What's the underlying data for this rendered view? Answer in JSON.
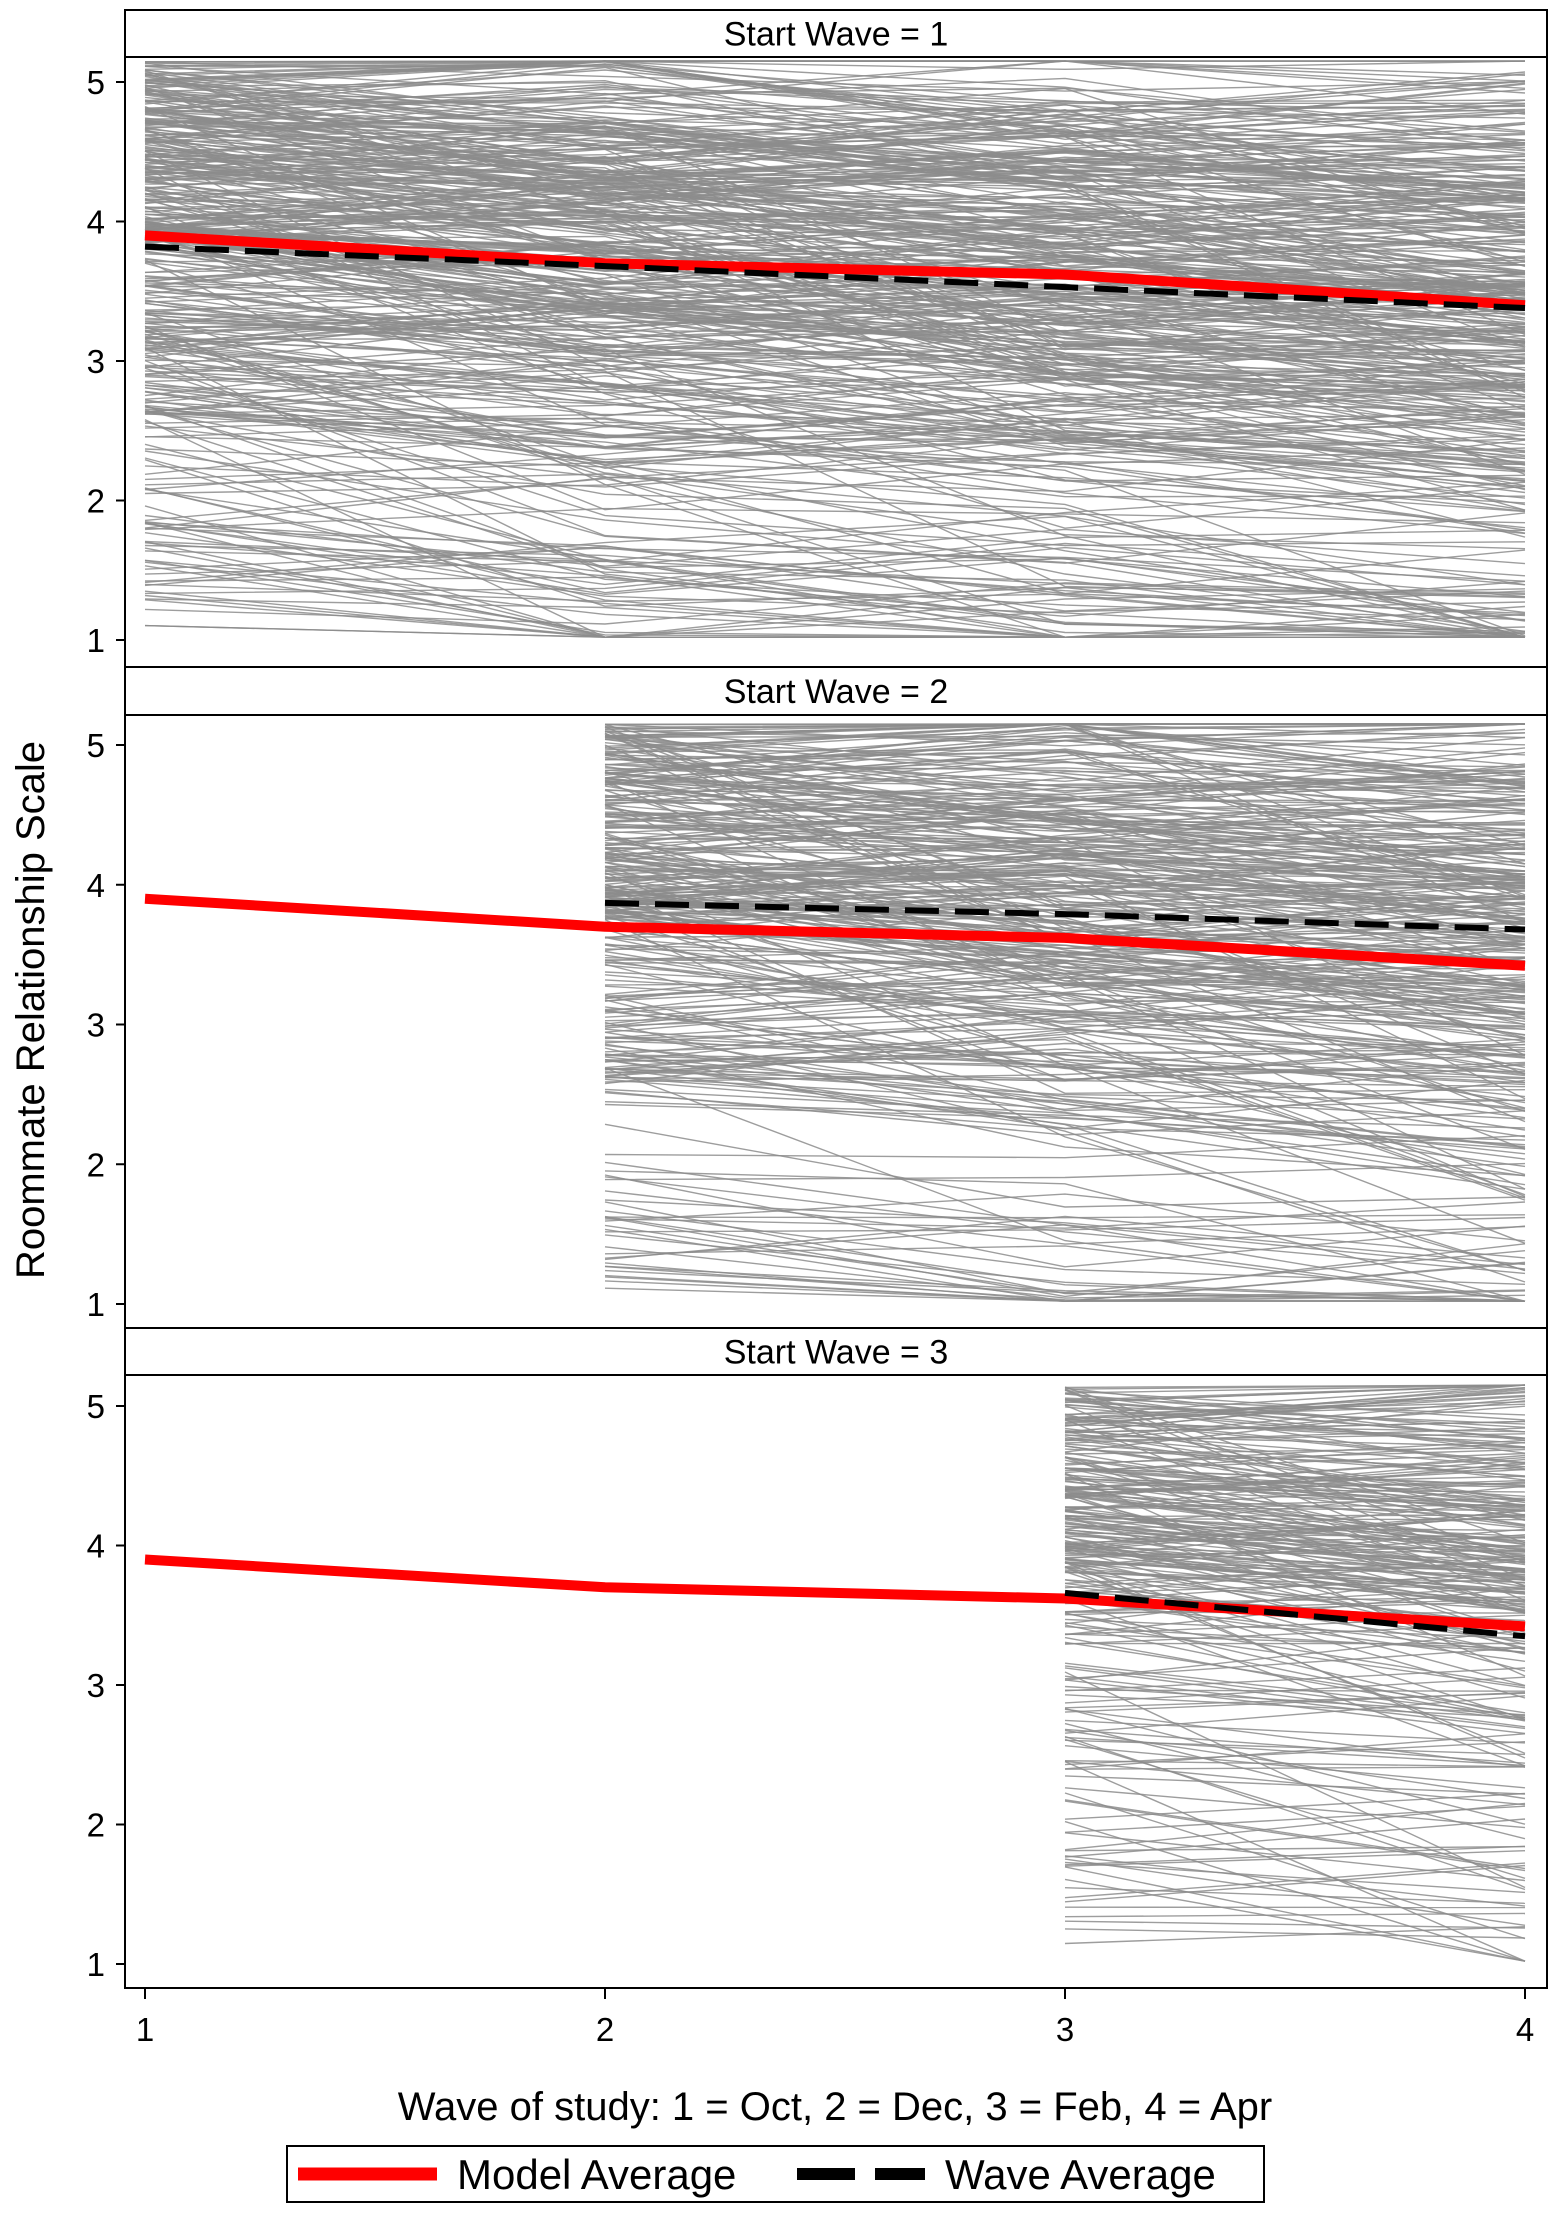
{
  "chart_data": {
    "type": "line",
    "ylabel": "Roommate Relationship Scale",
    "xlabel": "Wave of study: 1 = Oct, 2 = Dec, 3 = Feb, 4 = Apr",
    "x_ticks": [
      1,
      2,
      3,
      4
    ],
    "y_ticks": [
      1,
      2,
      3,
      4,
      5
    ],
    "xlim": [
      1,
      4
    ],
    "ylim": [
      0.95,
      5.2
    ],
    "legend": {
      "placement": "bottom",
      "items": [
        {
          "label": "Model Average",
          "color": "#ff0000",
          "style": "solid"
        },
        {
          "label": "Wave Average",
          "color": "#000000",
          "style": "dashed"
        }
      ]
    },
    "individual_line_color": "#8c8c8c",
    "panels": [
      {
        "header": "Start Wave = 1",
        "start_wave": 1,
        "series": [
          {
            "name": "Model Average",
            "x": [
              1,
              2,
              3,
              4
            ],
            "values": [
              3.9,
              3.7,
              3.62,
              3.4
            ]
          },
          {
            "name": "Wave Average",
            "x": [
              1,
              2,
              3,
              4
            ],
            "values": [
              3.82,
              3.68,
              3.53,
              3.38
            ]
          }
        ]
      },
      {
        "header": "Start Wave = 2",
        "start_wave": 2,
        "series": [
          {
            "name": "Model Average",
            "x": [
              1,
              2,
              3,
              4
            ],
            "values": [
              3.9,
              3.7,
              3.62,
              3.42
            ]
          },
          {
            "name": "Wave Average",
            "x": [
              2,
              3,
              4
            ],
            "values": [
              3.87,
              3.79,
              3.68
            ]
          }
        ]
      },
      {
        "header": "Start Wave = 3",
        "start_wave": 3,
        "series": [
          {
            "name": "Model Average",
            "x": [
              1,
              2,
              3,
              4
            ],
            "values": [
              3.9,
              3.7,
              3.62,
              3.42
            ]
          },
          {
            "name": "Wave Average",
            "x": [
              3,
              4
            ],
            "values": [
              3.66,
              3.35
            ]
          }
        ]
      }
    ]
  }
}
